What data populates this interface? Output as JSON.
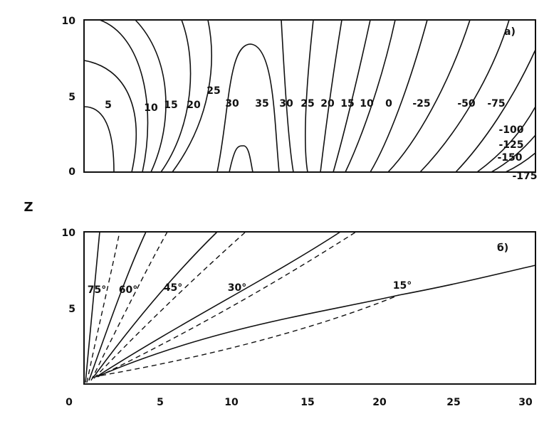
{
  "panel_a": {
    "label": "a)",
    "yticks": [
      "0",
      "5",
      "10"
    ],
    "contour_labels": [
      "5",
      "10",
      "15",
      "20",
      "25",
      "30",
      "35",
      "30",
      "25",
      "20",
      "15",
      "10",
      "0",
      "-25",
      "-50",
      "-75",
      "-100",
      "-125",
      "-150",
      "-175"
    ]
  },
  "panel_b": {
    "label": "б)",
    "yticks": [
      "5",
      "10"
    ],
    "angle_labels": [
      "75°",
      "60°",
      "45°",
      "30°",
      "15°"
    ]
  },
  "y_axis_label": "Z",
  "xticks": [
    "0",
    "5",
    "10",
    "15",
    "20",
    "25",
    "30"
  ]
}
